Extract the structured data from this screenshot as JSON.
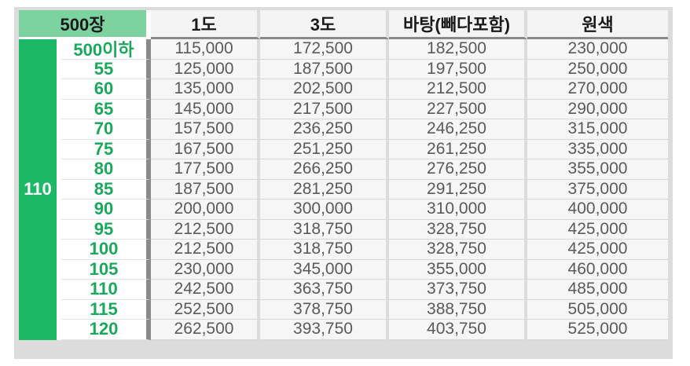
{
  "table": {
    "corner_label": "500장",
    "columns": [
      "1도",
      "3도",
      "바탕(빼다포함)",
      "원색"
    ],
    "side_label": "110",
    "rows": [
      {
        "size": "500이하",
        "values": [
          "115,000",
          "172,500",
          "182,500",
          "230,000"
        ]
      },
      {
        "size": "55",
        "values": [
          "125,000",
          "187,500",
          "197,500",
          "250,000"
        ]
      },
      {
        "size": "60",
        "values": [
          "135,000",
          "202,500",
          "212,500",
          "270,000"
        ]
      },
      {
        "size": "65",
        "values": [
          "145,000",
          "217,500",
          "227,500",
          "290,000"
        ]
      },
      {
        "size": "70",
        "values": [
          "157,500",
          "236,250",
          "246,250",
          "315,000"
        ]
      },
      {
        "size": "75",
        "values": [
          "167,500",
          "251,250",
          "261,250",
          "335,000"
        ]
      },
      {
        "size": "80",
        "values": [
          "177,500",
          "266,250",
          "276,250",
          "355,000"
        ]
      },
      {
        "size": "85",
        "values": [
          "187,500",
          "281,250",
          "291,250",
          "375,000"
        ]
      },
      {
        "size": "90",
        "values": [
          "200,000",
          "300,000",
          "310,000",
          "400,000"
        ]
      },
      {
        "size": "95",
        "values": [
          "212,500",
          "318,750",
          "328,750",
          "425,000"
        ]
      },
      {
        "size": "100",
        "values": [
          "212,500",
          "318,750",
          "328,750",
          "425,000"
        ]
      },
      {
        "size": "105",
        "values": [
          "230,000",
          "345,000",
          "355,000",
          "460,000"
        ]
      },
      {
        "size": "110",
        "values": [
          "242,500",
          "363,750",
          "373,750",
          "485,000"
        ]
      },
      {
        "size": "115",
        "values": [
          "252,500",
          "378,750",
          "388,750",
          "505,000"
        ]
      },
      {
        "size": "120",
        "values": [
          "262,500",
          "393,750",
          "403,750",
          "525,000"
        ]
      }
    ]
  },
  "colors": {
    "header_green": "#7dd3a0",
    "side_green": "#1db865",
    "size_text_green": "#1aa85a",
    "value_text": "#5a5a5a"
  }
}
